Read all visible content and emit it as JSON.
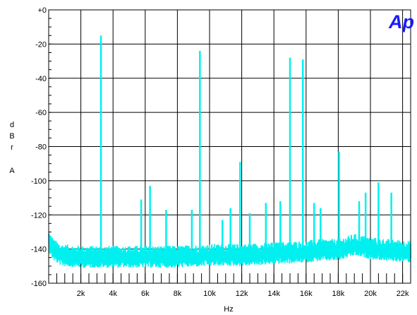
{
  "chart_data": {
    "type": "line",
    "logo": "Ap",
    "xlabel": "Hz",
    "ylabel_letters": [
      "d",
      "B",
      "r",
      "A"
    ],
    "xlim": [
      0,
      22500
    ],
    "ylim": [
      -160,
      0
    ],
    "x_ticks": [
      {
        "value": 2000,
        "label": "2k"
      },
      {
        "value": 4000,
        "label": "4k"
      },
      {
        "value": 6000,
        "label": "6k"
      },
      {
        "value": 8000,
        "label": "8k"
      },
      {
        "value": 10000,
        "label": "10k"
      },
      {
        "value": 12000,
        "label": "12k"
      },
      {
        "value": 14000,
        "label": "14k"
      },
      {
        "value": 16000,
        "label": "16k"
      },
      {
        "value": 18000,
        "label": "18k"
      },
      {
        "value": 20000,
        "label": "20k"
      },
      {
        "value": 22000,
        "label": "22k"
      }
    ],
    "y_ticks": [
      {
        "value": 0,
        "label": "+0"
      },
      {
        "value": -20,
        "label": "-20"
      },
      {
        "value": -40,
        "label": "-40"
      },
      {
        "value": -60,
        "label": "-60"
      },
      {
        "value": -80,
        "label": "-80"
      },
      {
        "value": -100,
        "label": "-100"
      },
      {
        "value": -120,
        "label": "-120"
      },
      {
        "value": -140,
        "label": "-140"
      },
      {
        "value": -160,
        "label": "-160"
      }
    ],
    "grid": true,
    "series_color": "#00f0f0",
    "noise_floor": {
      "x": [
        0,
        300,
        800,
        2000,
        4000,
        6000,
        8000,
        10000,
        12000,
        14000,
        16000,
        17000,
        18000,
        19000,
        20000,
        21000,
        22500
      ],
      "y": [
        -136,
        -141,
        -144,
        -145,
        -145,
        -145,
        -145,
        -144,
        -144,
        -143,
        -142,
        -141,
        -141,
        -138,
        -140,
        -141,
        -142
      ]
    },
    "peaks": {
      "x": [
        3250,
        9400,
        15000,
        15800,
        11900,
        18050,
        6300,
        20500,
        21300,
        5750,
        8900,
        7300,
        13500,
        14400,
        16500,
        16900,
        19300,
        19700,
        12500,
        10800,
        11300
      ],
      "y": [
        -15,
        -24,
        -28,
        -29,
        -89,
        -83,
        -103,
        -101,
        -107,
        -111,
        -117,
        -117,
        -113,
        -112,
        -113,
        -116,
        -112,
        -107,
        -119,
        -123,
        -116
      ]
    }
  }
}
